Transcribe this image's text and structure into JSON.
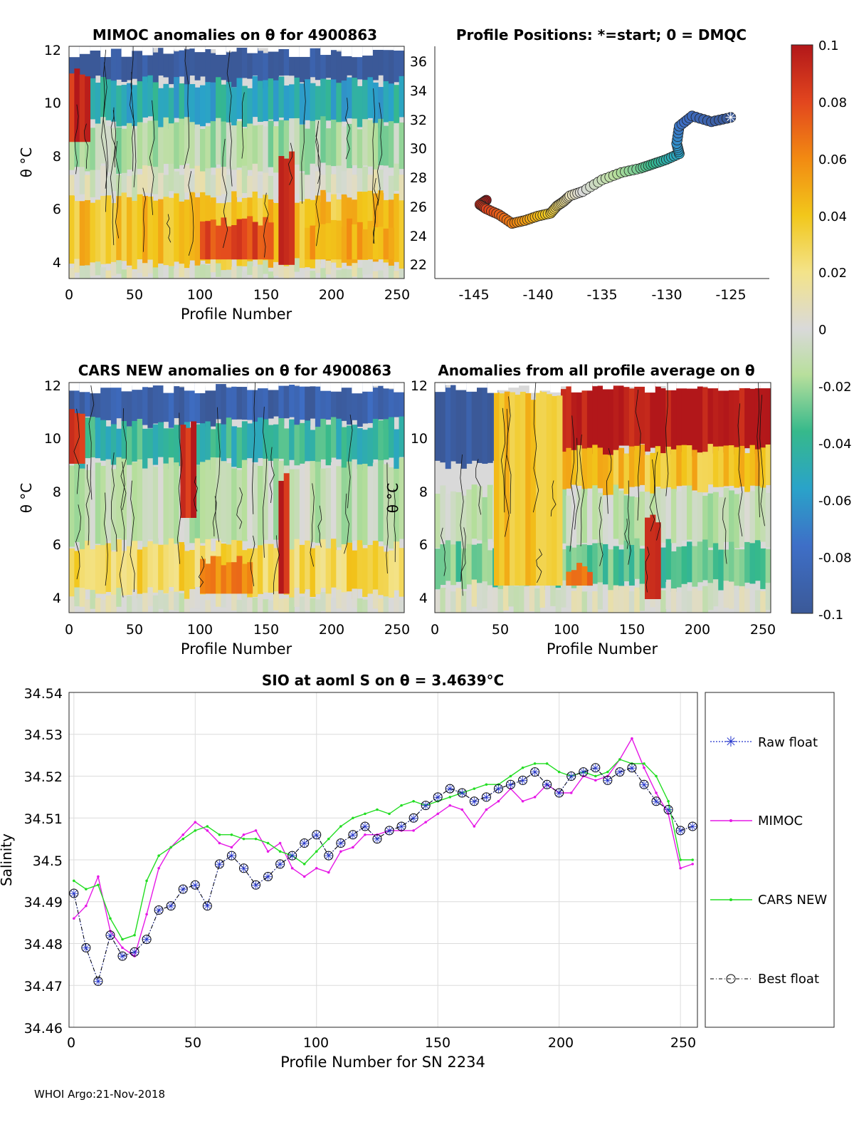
{
  "figure": {
    "footer": "WHOI Argo:21-Nov-2018"
  },
  "colorbar": {
    "ticks": [
      "0.1",
      "0.08",
      "0.06",
      "0.04",
      "0.02",
      "0",
      "-0.02",
      "-0.04",
      "-0.06",
      "-0.08",
      "-0.1"
    ],
    "range": [
      -0.1,
      0.1
    ]
  },
  "panels": {
    "mimoc": {
      "title": "MIMOC anomalies on θ  for 4900863",
      "xlabel": "Profile Number",
      "ylabel": "θ °C",
      "xticks": [
        "0",
        "50",
        "100",
        "150",
        "200",
        "250"
      ],
      "yticks": [
        "12",
        "10",
        "8",
        "6",
        "4"
      ]
    },
    "positions": {
      "title": "Profile Positions: *=start; 0 = DMQC",
      "xticks": [
        "-145",
        "-140",
        "-135",
        "-130",
        "-125"
      ],
      "yticks": [
        "36",
        "34",
        "32",
        "30",
        "28",
        "26",
        "24",
        "22"
      ]
    },
    "cars": {
      "title": "CARS NEW anomalies on θ for 4900863",
      "xlabel": "Profile Number",
      "ylabel": "θ °C",
      "xticks": [
        "0",
        "50",
        "100",
        "150",
        "200",
        "250"
      ],
      "yticks": [
        "12",
        "10",
        "8",
        "6",
        "4"
      ]
    },
    "allavg": {
      "title": "Anomalies from all profile average on θ",
      "xlabel": "Profile Number",
      "ylabel": "θ °C",
      "xticks": [
        "0",
        "50",
        "100",
        "150",
        "200",
        "250"
      ],
      "yticks": [
        "12",
        "10",
        "8",
        "6",
        "4"
      ]
    },
    "salinity": {
      "title": "SIO at aoml S on θ = 3.4639°C",
      "xlabel": "Profile Number for SN 2234",
      "ylabel": "Salinity",
      "xticks": [
        "0",
        "50",
        "100",
        "150",
        "200",
        "250"
      ],
      "yticks": [
        "34.54",
        "34.53",
        "34.52",
        "34.51",
        "34.5",
        "34.49",
        "34.48",
        "34.47",
        "34.46"
      ],
      "legend": [
        "Raw float",
        "MIMOC",
        "CARS NEW",
        "Best float"
      ]
    }
  },
  "chart_data": [
    {
      "type": "heatmap",
      "title": "MIMOC anomalies on θ  for 4900863",
      "xlabel": "Profile Number",
      "ylabel": "θ °C",
      "xlim": [
        0,
        256
      ],
      "ylim": [
        3.5,
        12
      ],
      "bands": [
        {
          "tmin": 10.7,
          "tmax": 12,
          "anomaly": -0.1
        },
        {
          "tmin": 9.2,
          "tmax": 10.7,
          "anomaly": -0.05
        },
        {
          "tmin": 7.5,
          "tmax": 9.2,
          "anomaly": -0.015
        },
        {
          "tmin": 6.5,
          "tmax": 7.5,
          "anomaly": 0.0
        },
        {
          "tmin": 4.0,
          "tmax": 6.5,
          "anomaly": 0.04
        },
        {
          "tmin": 3.5,
          "tmax": 4.0,
          "anomaly": 0.0
        }
      ],
      "hotspots": [
        {
          "x0": 0,
          "x1": 15,
          "t0": 8.5,
          "t1": 11,
          "anomaly": 0.1
        },
        {
          "x0": 100,
          "x1": 155,
          "t0": 4.2,
          "t1": 5.6,
          "anomaly": 0.09
        },
        {
          "x0": 160,
          "x1": 170,
          "t0": 4.0,
          "t1": 8.0,
          "anomaly": 0.1
        },
        {
          "x0": 180,
          "x1": 245,
          "t0": 4.2,
          "t1": 5.5,
          "anomaly": 0.06
        }
      ]
    },
    {
      "type": "scatter",
      "title": "Profile Positions: *=start; 0 = DMQC",
      "xlim": [
        -148,
        -122
      ],
      "ylim": [
        21,
        37
      ],
      "start": [
        -125.0,
        32.1
      ],
      "track": [
        [
          -125.0,
          32.1
        ],
        [
          -126.5,
          31.8
        ],
        [
          -128.0,
          32.2
        ],
        [
          -129.0,
          31.5
        ],
        [
          -129.2,
          30.3
        ],
        [
          -129.0,
          29.6
        ],
        [
          -130.0,
          29.2
        ],
        [
          -131.0,
          28.9
        ],
        [
          -132.0,
          28.6
        ],
        [
          -133.5,
          28.3
        ],
        [
          -135.0,
          27.8
        ],
        [
          -136.5,
          27.0
        ],
        [
          -137.5,
          26.7
        ],
        [
          -138.0,
          26.3
        ],
        [
          -138.5,
          26.0
        ],
        [
          -139.0,
          25.5
        ],
        [
          -140.0,
          25.3
        ],
        [
          -141.0,
          25.0
        ],
        [
          -142.0,
          24.8
        ],
        [
          -143.0,
          25.4
        ],
        [
          -144.0,
          25.8
        ],
        [
          -144.5,
          26.1
        ],
        [
          -144.0,
          26.4
        ]
      ]
    },
    {
      "type": "heatmap",
      "title": "CARS NEW anomalies on θ for 4900863",
      "xlabel": "Profile Number",
      "ylabel": "θ °C",
      "xlim": [
        0,
        256
      ],
      "ylim": [
        3.5,
        12
      ],
      "bands": [
        {
          "tmin": 10.5,
          "tmax": 12,
          "anomaly": -0.09
        },
        {
          "tmin": 9.0,
          "tmax": 10.5,
          "anomaly": -0.04
        },
        {
          "tmin": 6.0,
          "tmax": 9.0,
          "anomaly": -0.01
        },
        {
          "tmin": 4.2,
          "tmax": 6.0,
          "anomaly": 0.03
        },
        {
          "tmin": 3.5,
          "tmax": 4.2,
          "anomaly": 0.0
        }
      ],
      "hotspots": [
        {
          "x0": 0,
          "x1": 12,
          "t0": 9.0,
          "t1": 11,
          "anomaly": 0.1
        },
        {
          "x0": 85,
          "x1": 95,
          "t0": 7.0,
          "t1": 10.5,
          "anomaly": 0.1
        },
        {
          "x0": 100,
          "x1": 140,
          "t0": 4.2,
          "t1": 5.4,
          "anomaly": 0.07
        },
        {
          "x0": 160,
          "x1": 168,
          "t0": 4.2,
          "t1": 8.5,
          "anomaly": 0.1
        }
      ]
    },
    {
      "type": "heatmap",
      "title": "Anomalies from all profile average on θ",
      "xlabel": "Profile Number",
      "ylabel": "θ °C",
      "xlim": [
        0,
        256
      ],
      "ylim": [
        3.5,
        12
      ],
      "bands": [
        {
          "tmin": 9.0,
          "tmax": 12,
          "anomaly": -0.1,
          "xmax": 45
        },
        {
          "tmin": 9.5,
          "tmax": 12,
          "anomaly": 0.1,
          "xmin": 95
        },
        {
          "tmin": 8.0,
          "tmax": 9.5,
          "anomaly": 0.04,
          "xmin": 95
        },
        {
          "tmin": 6.0,
          "tmax": 8.0,
          "anomaly": -0.01
        },
        {
          "tmin": 4.5,
          "tmax": 6.0,
          "anomaly": -0.03
        },
        {
          "tmin": 3.5,
          "tmax": 4.5,
          "anomaly": 0.0
        }
      ],
      "hotspots": [
        {
          "x0": 45,
          "x1": 95,
          "t0": 4.5,
          "t1": 11.5,
          "anomaly": 0.05
        },
        {
          "x0": 160,
          "x1": 170,
          "t0": 4.0,
          "t1": 7.0,
          "anomaly": 0.1
        },
        {
          "x0": 100,
          "x1": 120,
          "t0": 4.5,
          "t1": 5.2,
          "anomaly": 0.08
        }
      ]
    },
    {
      "type": "line",
      "title": "SIO at aoml S on θ = 3.4639°C",
      "xlabel": "Profile Number for SN 2234",
      "ylabel": "Salinity",
      "xlim": [
        -2,
        257
      ],
      "ylim": [
        34.46,
        34.54
      ],
      "grid": true,
      "legend_position": "right",
      "x": [
        0,
        5,
        10,
        15,
        20,
        25,
        30,
        35,
        40,
        45,
        50,
        55,
        60,
        65,
        70,
        75,
        80,
        85,
        90,
        95,
        100,
        105,
        110,
        115,
        120,
        125,
        130,
        135,
        140,
        145,
        150,
        155,
        160,
        165,
        170,
        175,
        180,
        185,
        190,
        195,
        200,
        205,
        210,
        215,
        220,
        225,
        230,
        235,
        240,
        245,
        250,
        255
      ],
      "series": [
        {
          "name": "Raw float",
          "values": [
            34.492,
            34.479,
            34.471,
            34.482,
            34.477,
            34.478,
            34.481,
            34.488,
            34.489,
            34.493,
            34.494,
            34.489,
            34.499,
            34.501,
            34.498,
            34.494,
            34.496,
            34.499,
            34.501,
            34.504,
            34.506,
            34.501,
            34.504,
            34.506,
            34.508,
            34.505,
            34.507,
            34.508,
            34.51,
            34.513,
            34.515,
            34.517,
            34.516,
            34.514,
            34.515,
            34.517,
            34.518,
            34.519,
            34.521,
            34.518,
            34.516,
            34.52,
            34.521,
            34.522,
            34.519,
            34.521,
            34.522,
            34.518,
            34.514,
            34.512,
            34.507,
            34.508
          ]
        },
        {
          "name": "MIMOC",
          "values": [
            34.486,
            34.489,
            34.496,
            34.483,
            34.479,
            34.477,
            34.487,
            34.498,
            34.503,
            34.506,
            34.509,
            34.507,
            34.504,
            34.503,
            34.506,
            34.507,
            34.502,
            34.504,
            34.498,
            34.496,
            34.498,
            34.497,
            34.502,
            34.503,
            34.506,
            34.506,
            34.507,
            34.507,
            34.507,
            34.509,
            34.511,
            34.513,
            34.512,
            34.508,
            34.512,
            34.514,
            34.517,
            34.514,
            34.515,
            34.518,
            34.516,
            34.516,
            34.52,
            34.519,
            34.52,
            34.524,
            34.529,
            34.522,
            34.516,
            34.511,
            34.498,
            34.499
          ]
        },
        {
          "name": "CARS NEW",
          "values": [
            34.495,
            34.493,
            34.494,
            34.486,
            34.481,
            34.482,
            34.495,
            34.501,
            34.503,
            34.505,
            34.507,
            34.508,
            34.506,
            34.506,
            34.505,
            34.505,
            34.504,
            34.502,
            34.501,
            34.499,
            34.502,
            34.505,
            34.508,
            34.51,
            34.511,
            34.512,
            34.511,
            34.513,
            34.514,
            34.513,
            34.514,
            34.515,
            34.516,
            34.517,
            34.518,
            34.518,
            34.52,
            34.522,
            34.523,
            34.523,
            34.521,
            34.52,
            34.521,
            34.52,
            34.521,
            34.524,
            34.523,
            34.523,
            34.52,
            34.514,
            34.5,
            34.5
          ]
        },
        {
          "name": "Best float",
          "values": [
            34.492,
            34.479,
            34.471,
            34.482,
            34.477,
            34.478,
            34.481,
            34.488,
            34.489,
            34.493,
            34.494,
            34.489,
            34.499,
            34.501,
            34.498,
            34.494,
            34.496,
            34.499,
            34.501,
            34.504,
            34.506,
            34.501,
            34.504,
            34.506,
            34.508,
            34.505,
            34.507,
            34.508,
            34.51,
            34.513,
            34.515,
            34.517,
            34.516,
            34.514,
            34.515,
            34.517,
            34.518,
            34.519,
            34.521,
            34.518,
            34.516,
            34.52,
            34.521,
            34.522,
            34.519,
            34.521,
            34.522,
            34.518,
            34.514,
            34.512,
            34.507,
            34.508
          ]
        }
      ]
    }
  ]
}
